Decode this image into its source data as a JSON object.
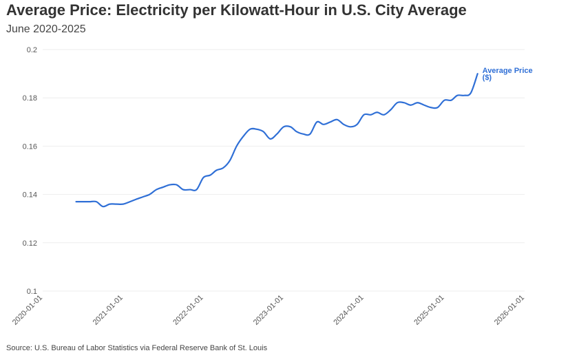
{
  "header": {
    "title": "Average Price: Electricity per Kilowatt-Hour in U.S. City Average",
    "subtitle": "June 2020-2025"
  },
  "footer": {
    "source": "Source: U.S. Bureau of Labor Statistics via Federal Reserve Bank of St. Louis"
  },
  "colors": {
    "line": "#2f6fd6",
    "grid": "#eeeeee",
    "text": "#333333"
  },
  "chart_data": {
    "type": "line",
    "title": "Average Price: Electricity per Kilowatt-Hour in U.S. City Average",
    "subtitle": "June 2020-2025",
    "xlabel": "",
    "ylabel": "",
    "ylim": [
      0.1,
      0.2
    ],
    "xlim": [
      "2020-01-01",
      "2026-01-01"
    ],
    "y_ticks": [
      "0.1",
      "0.12",
      "0.14",
      "0.16",
      "0.18",
      "0.2"
    ],
    "x_ticks": [
      "2020-01-01",
      "2021-01-01",
      "2022-01-01",
      "2023-01-01",
      "2024-01-01",
      "2025-01-01",
      "2026-01-01"
    ],
    "grid": true,
    "legend": "label at end of line",
    "series": [
      {
        "name": "Average Price ($)",
        "x": [
          "2020-06-01",
          "2020-07-01",
          "2020-08-01",
          "2020-09-01",
          "2020-10-01",
          "2020-11-01",
          "2020-12-01",
          "2021-01-01",
          "2021-02-01",
          "2021-03-01",
          "2021-04-01",
          "2021-05-01",
          "2021-06-01",
          "2021-07-01",
          "2021-08-01",
          "2021-09-01",
          "2021-10-01",
          "2021-11-01",
          "2021-12-01",
          "2022-01-01",
          "2022-02-01",
          "2022-03-01",
          "2022-04-01",
          "2022-05-01",
          "2022-06-01",
          "2022-07-01",
          "2022-08-01",
          "2022-09-01",
          "2022-10-01",
          "2022-11-01",
          "2022-12-01",
          "2023-01-01",
          "2023-02-01",
          "2023-03-01",
          "2023-04-01",
          "2023-05-01",
          "2023-06-01",
          "2023-07-01",
          "2023-08-01",
          "2023-09-01",
          "2023-10-01",
          "2023-11-01",
          "2023-12-01",
          "2024-01-01",
          "2024-02-01",
          "2024-03-01",
          "2024-04-01",
          "2024-05-01",
          "2024-06-01",
          "2024-07-01",
          "2024-08-01",
          "2024-09-01",
          "2024-10-01",
          "2024-11-01",
          "2024-12-01",
          "2025-01-01",
          "2025-02-01",
          "2025-03-01",
          "2025-04-01",
          "2025-05-01",
          "2025-06-01"
        ],
        "values": [
          0.137,
          0.137,
          0.137,
          0.137,
          0.135,
          0.136,
          0.136,
          0.136,
          0.137,
          0.138,
          0.139,
          0.14,
          0.142,
          0.143,
          0.144,
          0.144,
          0.142,
          0.142,
          0.142,
          0.147,
          0.148,
          0.15,
          0.151,
          0.154,
          0.16,
          0.164,
          0.167,
          0.167,
          0.166,
          0.163,
          0.165,
          0.168,
          0.168,
          0.166,
          0.165,
          0.165,
          0.17,
          0.169,
          0.17,
          0.171,
          0.169,
          0.168,
          0.169,
          0.173,
          0.173,
          0.174,
          0.173,
          0.175,
          0.178,
          0.178,
          0.177,
          0.178,
          0.177,
          0.176,
          0.176,
          0.179,
          0.179,
          0.181,
          0.181,
          0.182,
          0.19
        ]
      }
    ]
  }
}
